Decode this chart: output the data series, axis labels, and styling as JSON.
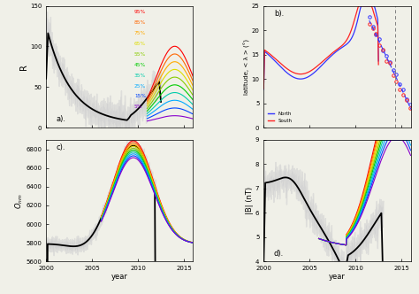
{
  "background": "#f0f0e8",
  "panel_bg": "#f0f0e8",
  "percentile_colors": [
    "#ff0000",
    "#ff6600",
    "#ffaa00",
    "#dddd00",
    "#88cc00",
    "#00cc00",
    "#00ccaa",
    "#00aaff",
    "#0044ff",
    "#8800cc"
  ],
  "percentile_labels": [
    "95%",
    "85%",
    "75%",
    "65%",
    "55%",
    "45%",
    "35%",
    "25%",
    "15%",
    "5%"
  ],
  "panel_labels": [
    "a).",
    "b).",
    "c).",
    "d)."
  ],
  "subplot_a": {
    "ylabel": "R",
    "ylim": [
      0,
      150
    ],
    "yticks": [
      0,
      50,
      100,
      150
    ]
  },
  "subplot_b": {
    "ylabel": "latitude, < λ > (°)",
    "ylim": [
      0,
      25
    ],
    "yticks": [
      0,
      5,
      10,
      15,
      20,
      25
    ],
    "north_color": "#3333ff",
    "south_color": "#ff2222"
  },
  "subplot_c": {
    "ylabel": "$O_{nm}$",
    "ylim": [
      5600,
      6900
    ],
    "yticks": [
      5600,
      5800,
      6000,
      6200,
      6400,
      6600,
      6800
    ],
    "xlabel": "year"
  },
  "subplot_d": {
    "ylabel": "|B| (nT)",
    "ylim": [
      4,
      9
    ],
    "yticks": [
      4,
      5,
      6,
      7,
      8,
      9
    ],
    "xlabel": "year"
  },
  "xlim": [
    2000,
    2016
  ],
  "xticks": [
    2000,
    2005,
    2010,
    2015
  ]
}
